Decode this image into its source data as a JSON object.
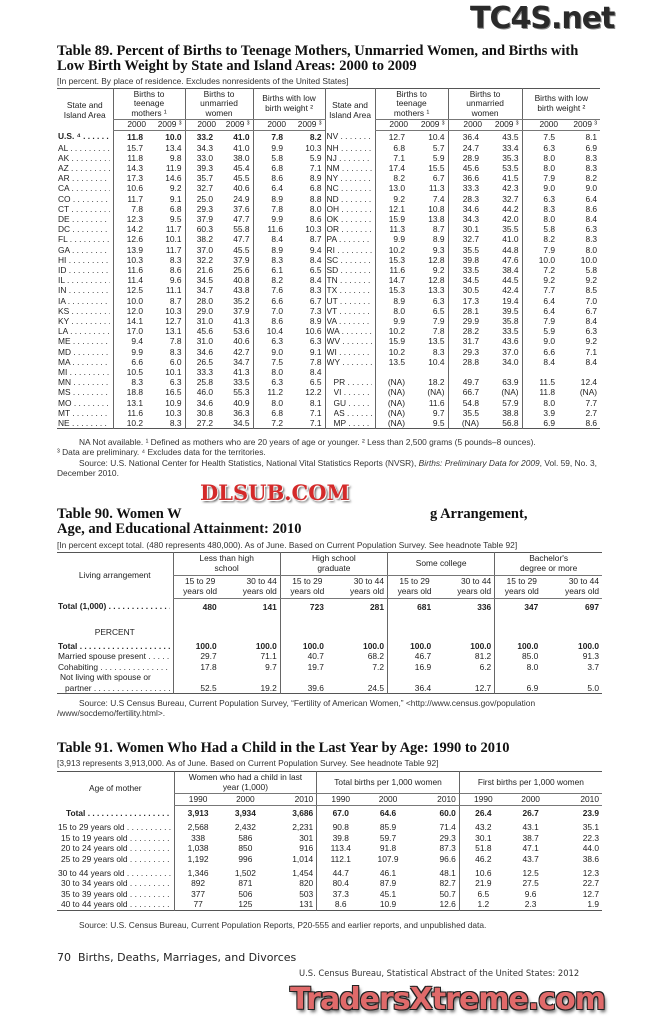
{
  "watermarks": {
    "top": "TC4S.net",
    "middle": "DLSUB.COM",
    "bottom": "TradersXtreme.com"
  },
  "t89": {
    "title": "Table 89. Percent of Births to Teenage Mothers, Unmarried Women, and Births with Low Birth Weight by State and Island Areas: 2000 to 2009",
    "headnote": "[In percent. By place of residence. Excludes nonresidents of the United States]",
    "stub_header": "State and Island Area",
    "groups": [
      "Births to teenage mothers ¹",
      "Births to unmarried women",
      "Births with low birth weight ²"
    ],
    "years": [
      "2000",
      "2009 ³"
    ],
    "left_rows": [
      {
        "area": "U.S. ⁴",
        "v": [
          "11.8",
          "10.0",
          "33.2",
          "41.0",
          "7.8",
          "8.2"
        ]
      },
      {
        "area": "AL",
        "v": [
          "15.7",
          "13.4",
          "34.3",
          "41.0",
          "9.9",
          "10.3"
        ]
      },
      {
        "area": "AK",
        "v": [
          "11.8",
          "9.8",
          "33.0",
          "38.0",
          "5.8",
          "5.9"
        ]
      },
      {
        "area": "AZ",
        "v": [
          "14.3",
          "11.9",
          "39.3",
          "45.4",
          "6.8",
          "7.1"
        ]
      },
      {
        "area": "AR",
        "v": [
          "17.3",
          "14.6",
          "35.7",
          "45.5",
          "8.6",
          "8.9"
        ]
      },
      {
        "area": "CA",
        "v": [
          "10.6",
          "9.2",
          "32.7",
          "40.6",
          "6.4",
          "6.8"
        ]
      },
      {
        "area": "CO",
        "v": [
          "11.7",
          "9.1",
          "25.0",
          "24.9",
          "8.9",
          "8.8"
        ]
      },
      {
        "area": "CT",
        "v": [
          "7.8",
          "6.8",
          "29.3",
          "37.6",
          "7.8",
          "8.0"
        ]
      },
      {
        "area": "DE",
        "v": [
          "12.3",
          "9.5",
          "37.9",
          "47.7",
          "9.9",
          "8.6"
        ]
      },
      {
        "area": "DC",
        "v": [
          "14.2",
          "11.7",
          "60.3",
          "55.8",
          "11.6",
          "10.3"
        ]
      },
      {
        "area": "FL",
        "v": [
          "12.6",
          "10.1",
          "38.2",
          "47.7",
          "8.4",
          "8.7"
        ]
      },
      {
        "area": "GA",
        "v": [
          "13.9",
          "11.7",
          "37.0",
          "45.5",
          "8.9",
          "9.4"
        ]
      },
      {
        "area": "HI",
        "v": [
          "10.3",
          "8.3",
          "32.2",
          "37.9",
          "8.3",
          "8.4"
        ]
      },
      {
        "area": "ID",
        "v": [
          "11.6",
          "8.6",
          "21.6",
          "25.6",
          "6.1",
          "6.5"
        ]
      },
      {
        "area": "IL",
        "v": [
          "11.4",
          "9.6",
          "34.5",
          "40.8",
          "8.2",
          "8.4"
        ]
      },
      {
        "area": "IN",
        "v": [
          "12.5",
          "11.1",
          "34.7",
          "43.8",
          "7.6",
          "8.3"
        ]
      },
      {
        "area": "IA",
        "v": [
          "10.0",
          "8.7",
          "28.0",
          "35.2",
          "6.6",
          "6.7"
        ]
      },
      {
        "area": "KS",
        "v": [
          "12.0",
          "10.3",
          "29.0",
          "37.9",
          "7.0",
          "7.3"
        ]
      },
      {
        "area": "KY",
        "v": [
          "14.1",
          "12.7",
          "31.0",
          "41.3",
          "8.6",
          "8.9"
        ]
      },
      {
        "area": "LA",
        "v": [
          "17.0",
          "13.1",
          "45.6",
          "53.6",
          "10.4",
          "10.6"
        ]
      },
      {
        "area": "ME",
        "v": [
          "9.4",
          "7.8",
          "31.0",
          "40.6",
          "6.3",
          "6.3"
        ]
      },
      {
        "area": "MD",
        "v": [
          "9.9",
          "8.3",
          "34.6",
          "42.7",
          "9.0",
          "9.1"
        ]
      },
      {
        "area": "MA",
        "v": [
          "6.6",
          "6.0",
          "26.5",
          "34.7",
          "7.5",
          "7.8"
        ]
      },
      {
        "area": "MI",
        "v": [
          "10.5",
          "10.1",
          "33.3",
          "41.3",
          "8.0",
          "8.4"
        ]
      },
      {
        "area": "MN",
        "v": [
          "8.3",
          "6.3",
          "25.8",
          "33.5",
          "6.3",
          "6.5"
        ]
      },
      {
        "area": "MS",
        "v": [
          "18.8",
          "16.5",
          "46.0",
          "55.3",
          "11.2",
          "12.2"
        ]
      },
      {
        "area": "MO",
        "v": [
          "13.1",
          "10.9",
          "34.6",
          "40.9",
          "8.0",
          "8.1"
        ]
      },
      {
        "area": "MT",
        "v": [
          "11.6",
          "10.3",
          "30.8",
          "36.3",
          "6.8",
          "7.1"
        ]
      },
      {
        "area": "NE",
        "v": [
          "10.2",
          "8.3",
          "27.2",
          "34.5",
          "7.2",
          "7.1"
        ]
      }
    ],
    "right_rows": [
      {
        "area": "NV",
        "v": [
          "12.7",
          "10.4",
          "36.4",
          "43.5",
          "7.5",
          "8.1"
        ]
      },
      {
        "area": "NH",
        "v": [
          "6.8",
          "5.7",
          "24.7",
          "33.4",
          "6.3",
          "6.9"
        ]
      },
      {
        "area": "NJ",
        "v": [
          "7.1",
          "5.9",
          "28.9",
          "35.3",
          "8.0",
          "8.3"
        ]
      },
      {
        "area": "NM",
        "v": [
          "17.4",
          "15.5",
          "45.6",
          "53.5",
          "8.0",
          "8.3"
        ]
      },
      {
        "area": "NY",
        "v": [
          "8.2",
          "6.7",
          "36.6",
          "41.5",
          "7.9",
          "8.2"
        ]
      },
      {
        "area": "NC",
        "v": [
          "13.0",
          "11.3",
          "33.3",
          "42.3",
          "9.0",
          "9.0"
        ]
      },
      {
        "area": "ND",
        "v": [
          "9.2",
          "7.4",
          "28.3",
          "32.7",
          "6.3",
          "6.4"
        ]
      },
      {
        "area": "OH",
        "v": [
          "12.1",
          "10.8",
          "34.6",
          "44.2",
          "8.3",
          "8.6"
        ]
      },
      {
        "area": "OK",
        "v": [
          "15.9",
          "13.8",
          "34.3",
          "42.0",
          "8.0",
          "8.4"
        ]
      },
      {
        "area": "OR",
        "v": [
          "11.3",
          "8.7",
          "30.1",
          "35.5",
          "5.8",
          "6.3"
        ]
      },
      {
        "area": "PA",
        "v": [
          "9.9",
          "8.9",
          "32.7",
          "41.0",
          "8.2",
          "8.3"
        ]
      },
      {
        "area": "RI",
        "v": [
          "10.2",
          "9.3",
          "35.5",
          "44.8",
          "7.9",
          "8.0"
        ]
      },
      {
        "area": "SC",
        "v": [
          "15.3",
          "12.8",
          "39.8",
          "47.6",
          "10.0",
          "10.0"
        ]
      },
      {
        "area": "SD",
        "v": [
          "11.6",
          "9.2",
          "33.5",
          "38.4",
          "7.2",
          "5.8"
        ]
      },
      {
        "area": "TN",
        "v": [
          "14.7",
          "12.8",
          "34.5",
          "44.5",
          "9.2",
          "9.2"
        ]
      },
      {
        "area": "TX",
        "v": [
          "15.3",
          "13.3",
          "30.5",
          "42.4",
          "7.7",
          "8.5"
        ]
      },
      {
        "area": "UT",
        "v": [
          "8.9",
          "6.3",
          "17.3",
          "19.4",
          "6.4",
          "7.0"
        ]
      },
      {
        "area": "VT",
        "v": [
          "8.0",
          "6.5",
          "28.1",
          "39.5",
          "6.4",
          "6.7"
        ]
      },
      {
        "area": "VA",
        "v": [
          "9.9",
          "7.9",
          "29.9",
          "35.8",
          "7.9",
          "8.4"
        ]
      },
      {
        "area": "WA",
        "v": [
          "10.2",
          "7.8",
          "28.2",
          "33.5",
          "5.9",
          "6.3"
        ]
      },
      {
        "area": "WV",
        "v": [
          "15.9",
          "13.5",
          "31.7",
          "43.6",
          "9.0",
          "9.2"
        ]
      },
      {
        "area": "WI",
        "v": [
          "10.2",
          "8.3",
          "29.3",
          "37.0",
          "6.6",
          "7.1"
        ]
      },
      {
        "area": "WY",
        "v": [
          "13.5",
          "10.4",
          "28.8",
          "34.0",
          "8.4",
          "8.4"
        ]
      },
      {
        "area": "",
        "v": [
          "",
          "",
          "",
          "",
          "",
          ""
        ]
      },
      {
        "area": "PR",
        "v": [
          "(NA)",
          "18.2",
          "49.7",
          "63.9",
          "11.5",
          "12.4"
        ]
      },
      {
        "area": "VI",
        "v": [
          "(NA)",
          "(NA)",
          "66.7",
          "(NA)",
          "11.8",
          "(NA)"
        ]
      },
      {
        "area": "GU",
        "v": [
          "(NA)",
          "11.6",
          "54.8",
          "57.9",
          "8.0",
          "7.7"
        ]
      },
      {
        "area": "AS",
        "v": [
          "(NA)",
          "9.7",
          "35.5",
          "38.8",
          "3.9",
          "2.7"
        ]
      },
      {
        "area": "MP",
        "v": [
          "(NA)",
          "9.5",
          "(NA)",
          "56.8",
          "6.9",
          "8.6"
        ]
      }
    ],
    "footnote_1": "NA Not available. ¹ Defined as mothers who are 20 years of age or younger. ² Less than 2,500 grams (5 pounds–8 ounces).",
    "footnote_2": "³ Data are preliminary. ⁴ Excludes data for the territories.",
    "source": "Source: U.S. National Center for Health Statistics, National Vital Statistics Reports (NVSR), ",
    "source_italic": "Births: Preliminary Data for 2009",
    "source_end": ", Vol. 59, No. 3, December 2010."
  },
  "t90": {
    "title_line1": "Table 90. Women W",
    "title_line1_end": "g Arrangement,",
    "title_line2": "Age, and Educational Attainment: 2010",
    "headnote": "[In percent except total. (480 represents 480,000). As of June. Based on Current Population Survey. See headnote Table 92]",
    "stub_header": "Living arrangement",
    "groups": [
      "Less than high school",
      "High school graduate",
      "Some college",
      "Bachelor's degree or more"
    ],
    "ages": [
      "15 to 29 years old",
      "30 to 44 years old"
    ],
    "rows": [
      {
        "label": "Total (1,000)",
        "v": [
          "480",
          "141",
          "723",
          "281",
          "681",
          "336",
          "347",
          "697"
        ],
        "bold": true
      },
      {
        "label": "PERCENT",
        "v": [],
        "section": true
      },
      {
        "label": "Total",
        "v": [
          "100.0",
          "100.0",
          "100.0",
          "100.0",
          "100.0",
          "100.0",
          "100.0",
          "100.0"
        ],
        "bold": true
      },
      {
        "label": "Married spouse present",
        "v": [
          "29.7",
          "71.1",
          "40.7",
          "68.2",
          "46.7",
          "81.2",
          "85.0",
          "91.3"
        ]
      },
      {
        "label": "Cohabiting",
        "v": [
          "17.8",
          "9.7",
          "19.7",
          "7.2",
          "16.9",
          "6.2",
          "8.0",
          "3.7"
        ]
      },
      {
        "label": "Not living with spouse or",
        "v": [],
        "plain": true
      },
      {
        "label": "partner",
        "v": [
          "52.5",
          "19.2",
          "39.6",
          "24.5",
          "36.4",
          "12.7",
          "6.9",
          "5.0"
        ],
        "indent": true
      }
    ],
    "source": "Source: U.S Census Bureau, Current Population Survey, “Fertility of American Women,” <http://www.census.gov/population /www/socdemo/fertility.html>."
  },
  "t91": {
    "title": "Table 91. Women Who Had a Child in the Last Year by Age: 1990 to 2010",
    "headnote": "[3,913 represents 3,913,000. As of June. Based on Current Population Survey. See headnote Table 92]",
    "stub_header": "Age of mother",
    "groups": [
      "Women who had a child in last year (1,000)",
      "Total births per 1,000 women",
      "First births per 1,000 women"
    ],
    "years": [
      "1990",
      "2000",
      "2010"
    ],
    "rows": [
      {
        "label": "Total",
        "v": [
          "3,913",
          "3,934",
          "3,686",
          "67.0",
          "64.6",
          "60.0",
          "26.4",
          "26.7",
          "23.9"
        ],
        "bold": true,
        "indent": true
      },
      {
        "label": "15 to 29 years old",
        "v": [
          "2,568",
          "2,432",
          "2,231",
          "90.8",
          "85.9",
          "71.4",
          "43.2",
          "43.1",
          "35.1"
        ]
      },
      {
        "label": "15 to 19 years old",
        "v": [
          "338",
          "586",
          "301",
          "39.8",
          "59.7",
          "29.3",
          "30.1",
          "38.7",
          "22.3"
        ],
        "indent": true
      },
      {
        "label": "20 to 24 years old",
        "v": [
          "1,038",
          "850",
          "916",
          "113.4",
          "91.8",
          "87.3",
          "51.8",
          "47.1",
          "44.0"
        ],
        "indent": true
      },
      {
        "label": "25 to 29 years old",
        "v": [
          "1,192",
          "996",
          "1,014",
          "112.1",
          "107.9",
          "96.6",
          "46.2",
          "43.7",
          "38.6"
        ],
        "indent": true
      },
      {
        "label": "30 to 44 years old",
        "v": [
          "1,346",
          "1,502",
          "1,454",
          "44.7",
          "46.1",
          "48.1",
          "10.6",
          "12.5",
          "12.3"
        ],
        "gap": true
      },
      {
        "label": "30 to 34 years old",
        "v": [
          "892",
          "871",
          "820",
          "80.4",
          "87.9",
          "82.7",
          "21.9",
          "27.5",
          "22.7"
        ],
        "indent": true
      },
      {
        "label": "35 to 39 years old",
        "v": [
          "377",
          "506",
          "503",
          "37.3",
          "45.1",
          "50.7",
          "6.5",
          "9.6",
          "12.7"
        ],
        "indent": true
      },
      {
        "label": "40 to 44 years old",
        "v": [
          "77",
          "125",
          "131",
          "8.6",
          "10.9",
          "12.6",
          "1.2",
          "2.3",
          "1.9"
        ],
        "indent": true
      }
    ],
    "source": "Source: U.S. Census Bureau, Current Population Reports, P20-555 and earlier reports, and unpublished data."
  },
  "footer": {
    "page": "70",
    "section": "Births, Deaths, Marriages, and Divorces",
    "citation": "U.S. Census Bureau, Statistical Abstract of the United States: 2012"
  }
}
